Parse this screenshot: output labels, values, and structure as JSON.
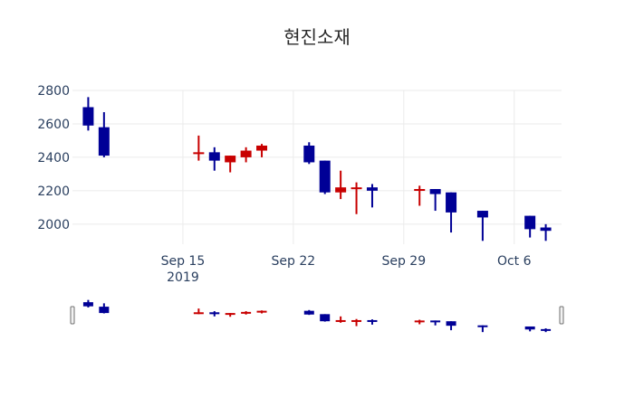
{
  "chart_data": {
    "type": "candlestick",
    "title": "현진소재",
    "y_ticks": [
      2000,
      2200,
      2400,
      2600,
      2800
    ],
    "ylim": [
      1880,
      2800
    ],
    "xlim": [
      "2019-09-08",
      "2019-10-09"
    ],
    "x_ticks": [
      {
        "date": "2019-09-15",
        "label": "Sep 15",
        "sublabel": "2019"
      },
      {
        "date": "2019-09-22",
        "label": "Sep 22",
        "sublabel": ""
      },
      {
        "date": "2019-09-29",
        "label": "Sep 29",
        "sublabel": ""
      },
      {
        "date": "2019-10-06",
        "label": "Oct 6",
        "sublabel": ""
      }
    ],
    "grid": true,
    "rangeslider": true,
    "colors": {
      "increasing": "#c80000",
      "decreasing": "#000096"
    },
    "candles": [
      {
        "date": "2019-09-09",
        "open": 2700,
        "high": 2760,
        "low": 2560,
        "close": 2590
      },
      {
        "date": "2019-09-10",
        "open": 2580,
        "high": 2670,
        "low": 2400,
        "close": 2410
      },
      {
        "date": "2019-09-16",
        "open": 2420,
        "high": 2530,
        "low": 2380,
        "close": 2430
      },
      {
        "date": "2019-09-17",
        "open": 2430,
        "high": 2460,
        "low": 2320,
        "close": 2380
      },
      {
        "date": "2019-09-18",
        "open": 2370,
        "high": 2410,
        "low": 2310,
        "close": 2410
      },
      {
        "date": "2019-09-19",
        "open": 2400,
        "high": 2460,
        "low": 2370,
        "close": 2440
      },
      {
        "date": "2019-09-20",
        "open": 2440,
        "high": 2480,
        "low": 2400,
        "close": 2470
      },
      {
        "date": "2019-09-23",
        "open": 2470,
        "high": 2490,
        "low": 2360,
        "close": 2370
      },
      {
        "date": "2019-09-24",
        "open": 2380,
        "high": 2380,
        "low": 2180,
        "close": 2190
      },
      {
        "date": "2019-09-25",
        "open": 2190,
        "high": 2320,
        "low": 2150,
        "close": 2220
      },
      {
        "date": "2019-09-26",
        "open": 2210,
        "high": 2250,
        "low": 2060,
        "close": 2220
      },
      {
        "date": "2019-09-27",
        "open": 2220,
        "high": 2240,
        "low": 2100,
        "close": 2200
      },
      {
        "date": "2019-09-30",
        "open": 2200,
        "high": 2230,
        "low": 2110,
        "close": 2210
      },
      {
        "date": "2019-10-01",
        "open": 2210,
        "high": 2210,
        "low": 2080,
        "close": 2180
      },
      {
        "date": "2019-10-02",
        "open": 2190,
        "high": 2190,
        "low": 1950,
        "close": 2070
      },
      {
        "date": "2019-10-04",
        "open": 2080,
        "high": 2080,
        "low": 1900,
        "close": 2040
      },
      {
        "date": "2019-10-07",
        "open": 2050,
        "high": 2050,
        "low": 1920,
        "close": 1970
      },
      {
        "date": "2019-10-08",
        "open": 1980,
        "high": 2000,
        "low": 1900,
        "close": 1960
      }
    ]
  }
}
